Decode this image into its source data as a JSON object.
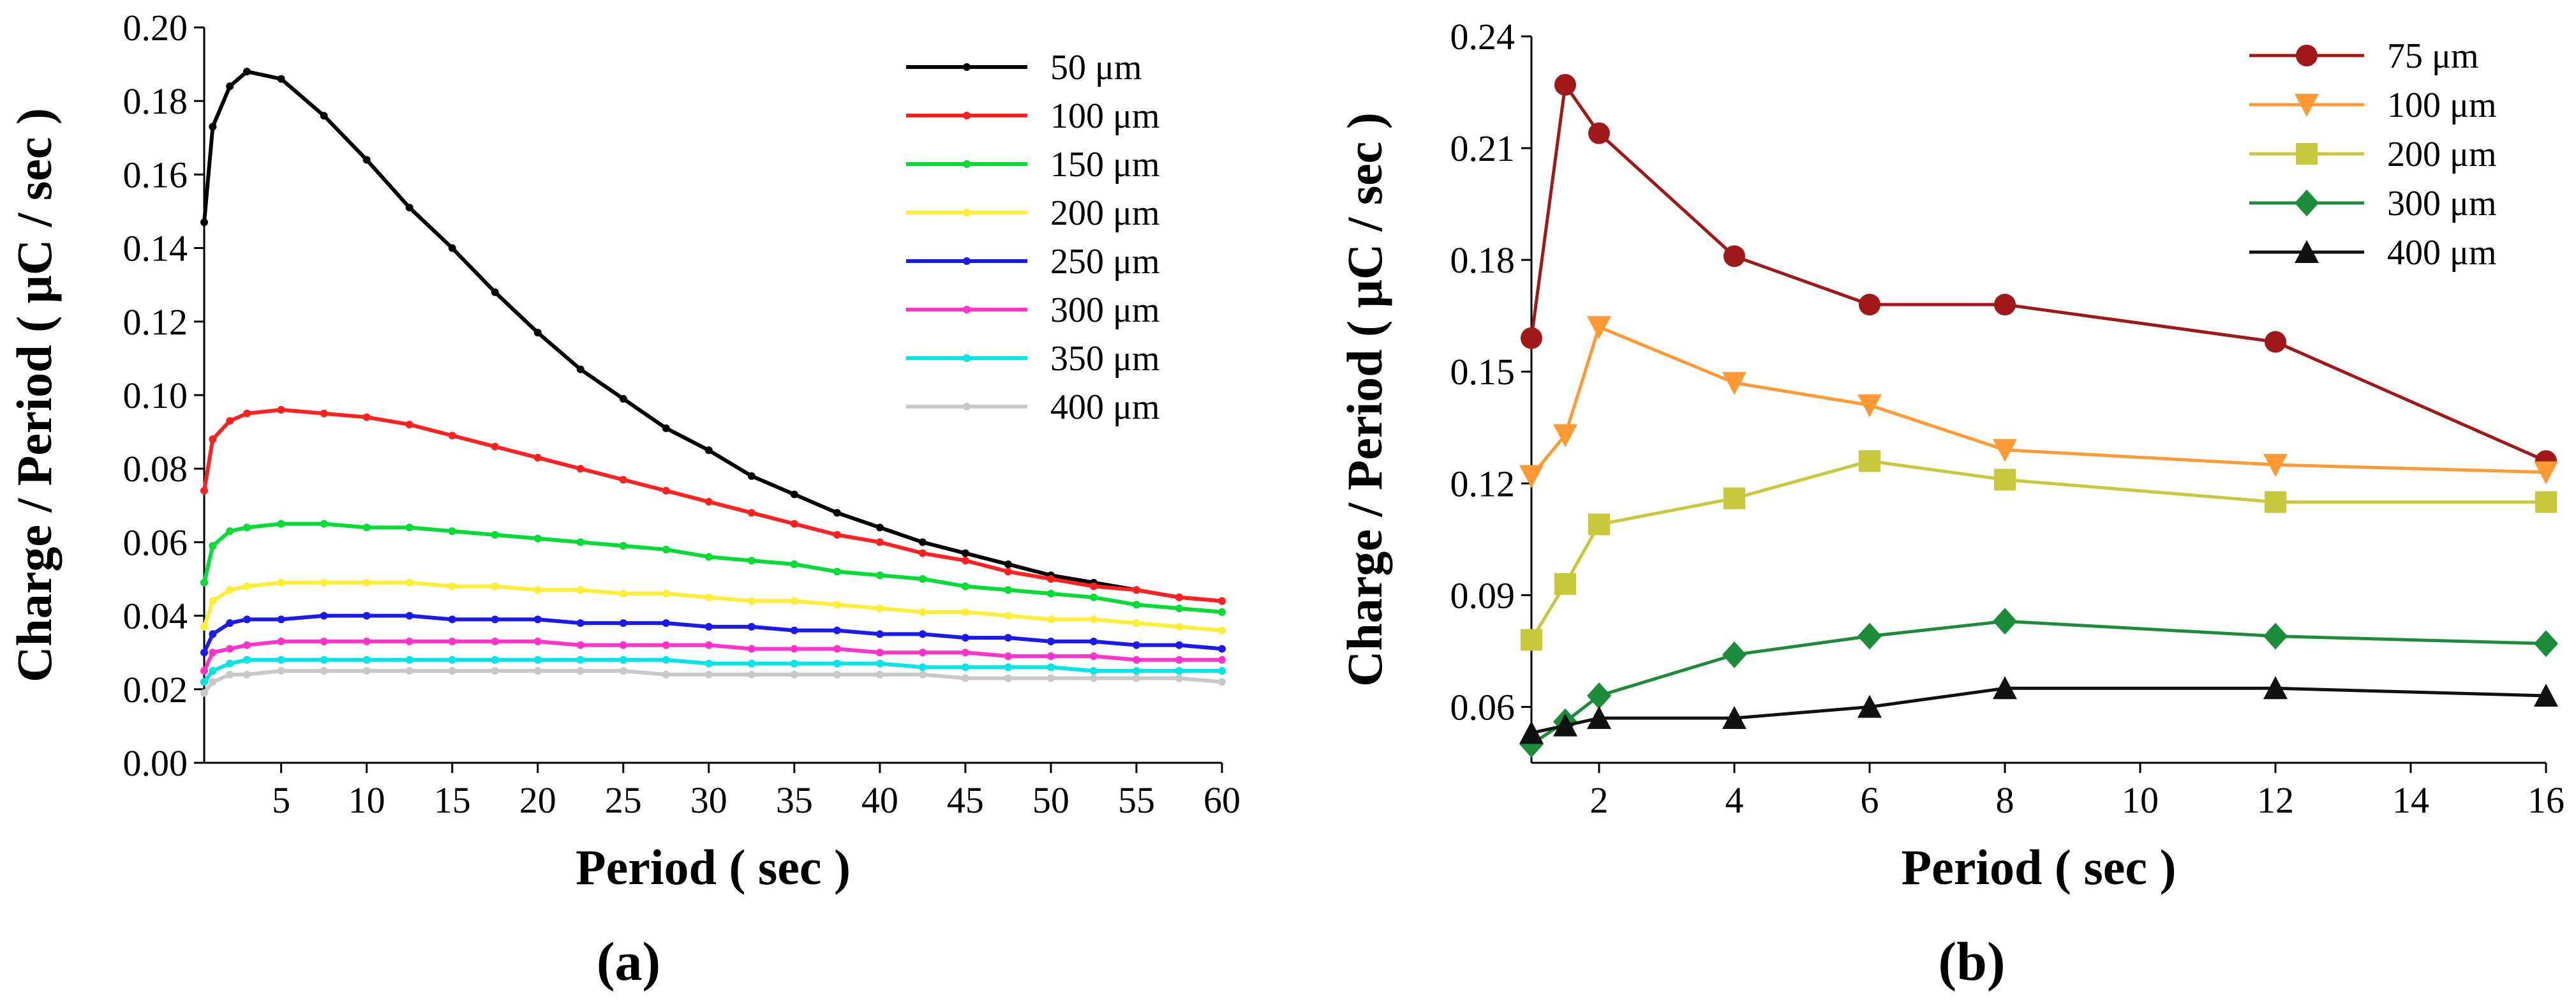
{
  "figure": {
    "panel_labels": [
      "(a)",
      "(b)"
    ]
  },
  "chart_data": [
    {
      "type": "line",
      "panel": "(a)",
      "title": "",
      "xlabel": "Period ( sec )",
      "ylabel": "Charge / Period ( μC / sec )",
      "xlim": [
        0.5,
        60
      ],
      "ylim": [
        0,
        0.2
      ],
      "xticks": [
        5,
        10,
        15,
        20,
        25,
        30,
        35,
        40,
        45,
        50,
        55,
        60
      ],
      "xtick_labels": [
        "5",
        "10",
        "15",
        "20",
        "25",
        "30",
        "35",
        "40",
        "45",
        "50",
        "55",
        "60"
      ],
      "yticks": [
        0,
        0.02,
        0.04,
        0.06,
        0.08,
        0.1,
        0.12,
        0.14,
        0.16,
        0.18,
        0.2
      ],
      "ytick_labels": [
        "0.00",
        "0.02",
        "0.04",
        "0.06",
        "0.08",
        "0.10",
        "0.12",
        "0.14",
        "0.16",
        "0.18",
        "0.20"
      ],
      "grid": false,
      "legend_position": "top-right",
      "x": [
        0.5,
        1,
        2,
        3,
        5,
        7.5,
        10,
        12.5,
        15,
        17.5,
        20,
        22.5,
        25,
        27.5,
        30,
        32.5,
        35,
        37.5,
        40,
        42.5,
        45,
        47.5,
        50,
        52.5,
        55,
        57.5,
        60
      ],
      "series": [
        {
          "name": "50 μm",
          "color": "#000000",
          "values": [
            0.147,
            0.173,
            0.184,
            0.188,
            0.186,
            0.176,
            0.164,
            0.151,
            0.14,
            0.128,
            0.117,
            0.107,
            0.099,
            0.091,
            0.085,
            0.078,
            0.073,
            0.068,
            0.064,
            0.06,
            0.057,
            0.054,
            0.051,
            0.049,
            0.047,
            0.045,
            0.044
          ]
        },
        {
          "name": "100  μm",
          "color": "#ff2020",
          "values": [
            0.074,
            0.088,
            0.093,
            0.095,
            0.096,
            0.095,
            0.094,
            0.092,
            0.089,
            0.086,
            0.083,
            0.08,
            0.077,
            0.074,
            0.071,
            0.068,
            0.065,
            0.062,
            0.06,
            0.057,
            0.055,
            0.052,
            0.05,
            0.048,
            0.047,
            0.045,
            0.044
          ]
        },
        {
          "name": "150  μm",
          "color": "#00dd33",
          "values": [
            0.049,
            0.059,
            0.063,
            0.064,
            0.065,
            0.065,
            0.064,
            0.064,
            0.063,
            0.062,
            0.061,
            0.06,
            0.059,
            0.058,
            0.056,
            0.055,
            0.054,
            0.052,
            0.051,
            0.05,
            0.048,
            0.047,
            0.046,
            0.045,
            0.043,
            0.042,
            0.041
          ]
        },
        {
          "name": "200  μm",
          "color": "#ffee33",
          "values": [
            0.037,
            0.044,
            0.047,
            0.048,
            0.049,
            0.049,
            0.049,
            0.049,
            0.048,
            0.048,
            0.047,
            0.047,
            0.046,
            0.046,
            0.045,
            0.044,
            0.044,
            0.043,
            0.042,
            0.041,
            0.041,
            0.04,
            0.039,
            0.039,
            0.038,
            0.037,
            0.036
          ]
        },
        {
          "name": "250  μm",
          "color": "#1a1aee",
          "values": [
            0.03,
            0.035,
            0.038,
            0.039,
            0.039,
            0.04,
            0.04,
            0.04,
            0.039,
            0.039,
            0.039,
            0.038,
            0.038,
            0.038,
            0.037,
            0.037,
            0.036,
            0.036,
            0.035,
            0.035,
            0.034,
            0.034,
            0.033,
            0.033,
            0.032,
            0.032,
            0.031
          ]
        },
        {
          "name": "300  μm",
          "color": "#ff33cc",
          "values": [
            0.025,
            0.03,
            0.031,
            0.032,
            0.033,
            0.033,
            0.033,
            0.033,
            0.033,
            0.033,
            0.033,
            0.032,
            0.032,
            0.032,
            0.032,
            0.031,
            0.031,
            0.031,
            0.03,
            0.03,
            0.03,
            0.029,
            0.029,
            0.029,
            0.028,
            0.028,
            0.028
          ]
        },
        {
          "name": "350  μm",
          "color": "#00e5e5",
          "values": [
            0.022,
            0.025,
            0.027,
            0.028,
            0.028,
            0.028,
            0.028,
            0.028,
            0.028,
            0.028,
            0.028,
            0.028,
            0.028,
            0.028,
            0.027,
            0.027,
            0.027,
            0.027,
            0.027,
            0.026,
            0.026,
            0.026,
            0.026,
            0.025,
            0.025,
            0.025,
            0.025
          ]
        },
        {
          "name": "400  μm",
          "color": "#c8c8c8",
          "values": [
            0.019,
            0.022,
            0.024,
            0.024,
            0.025,
            0.025,
            0.025,
            0.025,
            0.025,
            0.025,
            0.025,
            0.025,
            0.025,
            0.024,
            0.024,
            0.024,
            0.024,
            0.024,
            0.024,
            0.024,
            0.023,
            0.023,
            0.023,
            0.023,
            0.023,
            0.023,
            0.022
          ]
        }
      ]
    },
    {
      "type": "line",
      "panel": "(b)",
      "title": "",
      "xlabel": "Period ( sec )",
      "ylabel": "Charge / Period ( μC / sec )",
      "xlim": [
        1,
        16
      ],
      "ylim": [
        0.045,
        0.24
      ],
      "xticks": [
        2,
        4,
        6,
        8,
        10,
        12,
        14,
        16
      ],
      "xtick_labels": [
        "2",
        "4",
        "6",
        "8",
        "10",
        "12",
        "14",
        "16"
      ],
      "yticks": [
        0.06,
        0.09,
        0.12,
        0.15,
        0.18,
        0.21,
        0.24
      ],
      "ytick_labels": [
        "0.06",
        "0.09",
        "0.12",
        "0.15",
        "0.18",
        "0.21",
        "0.24"
      ],
      "grid": false,
      "legend_position": "top-right",
      "x": [
        1,
        1.5,
        2,
        4,
        6,
        8,
        12,
        16
      ],
      "series": [
        {
          "name": "75 μm",
          "color": "#a01818",
          "marker": "circle",
          "values": [
            0.159,
            0.227,
            0.214,
            0.181,
            0.168,
            0.168,
            0.158,
            0.126
          ]
        },
        {
          "name": "100 μm",
          "color": "#ff9933",
          "marker": "triangle-down",
          "values": [
            0.122,
            0.133,
            0.162,
            0.147,
            0.141,
            0.129,
            0.125,
            0.123
          ]
        },
        {
          "name": "200 μm",
          "color": "#c8c83a",
          "marker": "square",
          "values": [
            0.078,
            0.093,
            0.109,
            0.116,
            0.126,
            0.121,
            0.115,
            0.115
          ]
        },
        {
          "name": "300 μm",
          "color": "#1a8c3a",
          "marker": "diamond",
          "values": [
            0.05,
            0.056,
            0.063,
            0.074,
            0.079,
            0.083,
            0.079,
            0.077
          ]
        },
        {
          "name": "400 μm",
          "color": "#111111",
          "marker": "triangle-up",
          "values": [
            0.053,
            0.055,
            0.057,
            0.057,
            0.06,
            0.065,
            0.065,
            0.063
          ]
        }
      ]
    }
  ]
}
